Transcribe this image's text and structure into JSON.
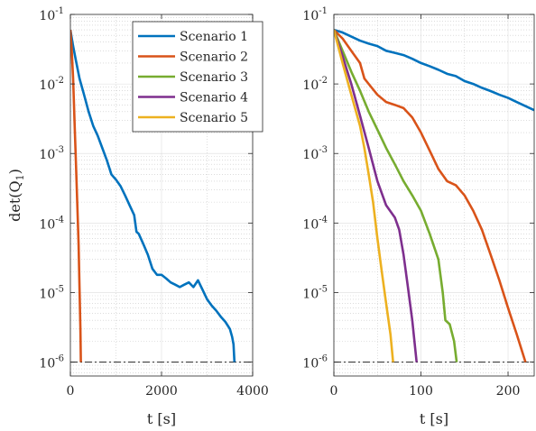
{
  "chart_data": [
    {
      "type": "line",
      "panel": "left",
      "xlabel": "t [s]",
      "ylabel": "det(Q_1)",
      "ylabel_display": "det(Q",
      "ylabel_sub": "1",
      "ylabel_close": ")",
      "xlim": [
        0,
        4000
      ],
      "ylim_log10": [
        -6.2,
        -1
      ],
      "yscale": "log",
      "grid": "minor-dotted",
      "xticks": [
        0,
        2000,
        4000
      ],
      "xtick_labels": [
        "0",
        "2000",
        "4000"
      ],
      "yticks_exp": [
        -6,
        -5,
        -4,
        -3,
        -2,
        -1
      ],
      "legend_position": "top-right",
      "series": [
        {
          "name": "Scenario 1",
          "color": "#0072BD",
          "points": [
            [
              0,
              0.06
            ],
            [
              60,
              0.035
            ],
            [
              120,
              0.022
            ],
            [
              200,
              0.012
            ],
            [
              300,
              0.007
            ],
            [
              400,
              0.004
            ],
            [
              500,
              0.0025
            ],
            [
              600,
              0.0018
            ],
            [
              700,
              0.0012
            ],
            [
              800,
              0.0008
            ],
            [
              900,
              0.0005
            ],
            [
              1000,
              0.00042
            ],
            [
              1100,
              0.00034
            ],
            [
              1200,
              0.00025
            ],
            [
              1300,
              0.00018
            ],
            [
              1400,
              0.00013
            ],
            [
              1450,
              7.5e-05
            ],
            [
              1500,
              7e-05
            ],
            [
              1600,
              5e-05
            ],
            [
              1700,
              3.5e-05
            ],
            [
              1800,
              2.2e-05
            ],
            [
              1900,
              1.8e-05
            ],
            [
              2000,
              1.8e-05
            ],
            [
              2100,
              1.6e-05
            ],
            [
              2200,
              1.4e-05
            ],
            [
              2300,
              1.3e-05
            ],
            [
              2400,
              1.2e-05
            ],
            [
              2500,
              1.3e-05
            ],
            [
              2600,
              1.4e-05
            ],
            [
              2700,
              1.2e-05
            ],
            [
              2800,
              1.5e-05
            ],
            [
              2900,
              1.1e-05
            ],
            [
              3000,
              8e-06
            ],
            [
              3100,
              6.5e-06
            ],
            [
              3200,
              5.5e-06
            ],
            [
              3300,
              4.5e-06
            ],
            [
              3400,
              3.8e-06
            ],
            [
              3500,
              3e-06
            ],
            [
              3550,
              2.3e-06
            ],
            [
              3580,
              1.8e-06
            ],
            [
              3600,
              1e-06
            ]
          ]
        },
        {
          "name": "Scenario 2",
          "color": "#D95319",
          "points": [
            [
              0,
              0.06
            ],
            [
              30,
              0.03
            ],
            [
              60,
              0.012
            ],
            [
              90,
              0.003
            ],
            [
              120,
              0.0008
            ],
            [
              150,
              0.0002
            ],
            [
              180,
              5e-05
            ],
            [
              200,
              1.2e-05
            ],
            [
              220,
              3e-06
            ],
            [
              230,
              1e-06
            ]
          ]
        }
      ],
      "threshold": 1e-06
    },
    {
      "type": "line",
      "panel": "right",
      "xlabel": "t [s]",
      "xlim": [
        0,
        230
      ],
      "ylim_log10": [
        -6.2,
        -1
      ],
      "yscale": "log",
      "grid": "minor-dotted",
      "xticks": [
        0,
        100,
        200
      ],
      "xtick_labels": [
        "0",
        "100",
        "200"
      ],
      "yticks_exp": [
        -6,
        -5,
        -4,
        -3,
        -2,
        -1
      ],
      "series": [
        {
          "name": "Scenario 1",
          "color": "#0072BD",
          "points": [
            [
              0,
              0.06
            ],
            [
              10,
              0.055
            ],
            [
              20,
              0.048
            ],
            [
              30,
              0.042
            ],
            [
              40,
              0.038
            ],
            [
              50,
              0.035
            ],
            [
              60,
              0.03
            ],
            [
              70,
              0.028
            ],
            [
              80,
              0.026
            ],
            [
              90,
              0.023
            ],
            [
              100,
              0.02
            ],
            [
              110,
              0.018
            ],
            [
              120,
              0.016
            ],
            [
              130,
              0.014
            ],
            [
              140,
              0.013
            ],
            [
              150,
              0.011
            ],
            [
              160,
              0.01
            ],
            [
              170,
              0.0088
            ],
            [
              180,
              0.0079
            ],
            [
              190,
              0.007
            ],
            [
              200,
              0.0063
            ],
            [
              210,
              0.0055
            ],
            [
              220,
              0.0048
            ],
            [
              230,
              0.0042
            ]
          ]
        },
        {
          "name": "Scenario 2",
          "color": "#D95319",
          "points": [
            [
              0,
              0.06
            ],
            [
              10,
              0.045
            ],
            [
              20,
              0.03
            ],
            [
              30,
              0.02
            ],
            [
              35,
              0.012
            ],
            [
              40,
              0.01
            ],
            [
              50,
              0.007
            ],
            [
              60,
              0.0055
            ],
            [
              70,
              0.005
            ],
            [
              80,
              0.0045
            ],
            [
              90,
              0.0033
            ],
            [
              100,
              0.002
            ],
            [
              110,
              0.0011
            ],
            [
              120,
              0.0006
            ],
            [
              130,
              0.0004
            ],
            [
              140,
              0.00035
            ],
            [
              150,
              0.00025
            ],
            [
              160,
              0.00015
            ],
            [
              170,
              8e-05
            ],
            [
              180,
              3.5e-05
            ],
            [
              190,
              1.5e-05
            ],
            [
              200,
              6e-06
            ],
            [
              210,
              2.5e-06
            ],
            [
              220,
              1e-06
            ]
          ]
        },
        {
          "name": "Scenario 3",
          "color": "#77AC30",
          "points": [
            [
              0,
              0.06
            ],
            [
              10,
              0.03
            ],
            [
              20,
              0.015
            ],
            [
              30,
              0.008
            ],
            [
              40,
              0.004
            ],
            [
              50,
              0.0022
            ],
            [
              60,
              0.0012
            ],
            [
              70,
              0.0007
            ],
            [
              80,
              0.0004
            ],
            [
              90,
              0.00025
            ],
            [
              100,
              0.00015
            ],
            [
              110,
              7e-05
            ],
            [
              120,
              3e-05
            ],
            [
              125,
              1e-05
            ],
            [
              128,
              4e-06
            ],
            [
              133,
              3.5e-06
            ],
            [
              138,
              2e-06
            ],
            [
              141,
              1e-06
            ]
          ]
        },
        {
          "name": "Scenario 4",
          "color": "#7E2F8E",
          "points": [
            [
              0,
              0.06
            ],
            [
              10,
              0.025
            ],
            [
              20,
              0.01
            ],
            [
              30,
              0.0035
            ],
            [
              40,
              0.0012
            ],
            [
              50,
              0.0004
            ],
            [
              60,
              0.00018
            ],
            [
              70,
              0.00012
            ],
            [
              75,
              8e-05
            ],
            [
              80,
              3.5e-05
            ],
            [
              85,
              1.2e-05
            ],
            [
              90,
              4e-06
            ],
            [
              95,
              1e-06
            ]
          ]
        },
        {
          "name": "Scenario 5",
          "color": "#EDB120",
          "points": [
            [
              0,
              0.06
            ],
            [
              10,
              0.02
            ],
            [
              20,
              0.007
            ],
            [
              30,
              0.0025
            ],
            [
              35,
              0.0012
            ],
            [
              40,
              0.0005
            ],
            [
              45,
              0.0002
            ],
            [
              50,
              6e-05
            ],
            [
              55,
              2e-05
            ],
            [
              60,
              7e-06
            ],
            [
              65,
              2.5e-06
            ],
            [
              68,
              1e-06
            ]
          ]
        }
      ],
      "threshold": 1e-06
    }
  ],
  "legend": [
    "Scenario 1",
    "Scenario 2",
    "Scenario 3",
    "Scenario 4",
    "Scenario 5"
  ]
}
